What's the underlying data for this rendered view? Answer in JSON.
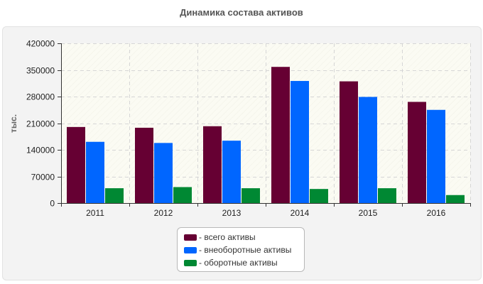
{
  "chart_data": {
    "type": "bar",
    "title": "Динамика состава активов",
    "ylabel": "тыс.",
    "xlabel": "",
    "categories": [
      "2011",
      "2012",
      "2013",
      "2014",
      "2015",
      "2016"
    ],
    "ylim": [
      0,
      420000
    ],
    "yticks": [
      "0",
      "70000",
      "140000",
      "210000",
      "280000",
      "350000",
      "420000"
    ],
    "grid": true,
    "legend_position": "bottom",
    "series": [
      {
        "name": "- всего активы",
        "color": "#660033",
        "values": [
          200000,
          198000,
          202000,
          358000,
          320000,
          266000
        ]
      },
      {
        "name": "- внеоборотные активы",
        "color": "#0066ff",
        "values": [
          161000,
          158000,
          164000,
          321000,
          279000,
          245000
        ]
      },
      {
        "name": "- оборотные активы",
        "color": "#008833",
        "values": [
          39000,
          42000,
          39000,
          37000,
          39000,
          21000
        ]
      }
    ]
  }
}
